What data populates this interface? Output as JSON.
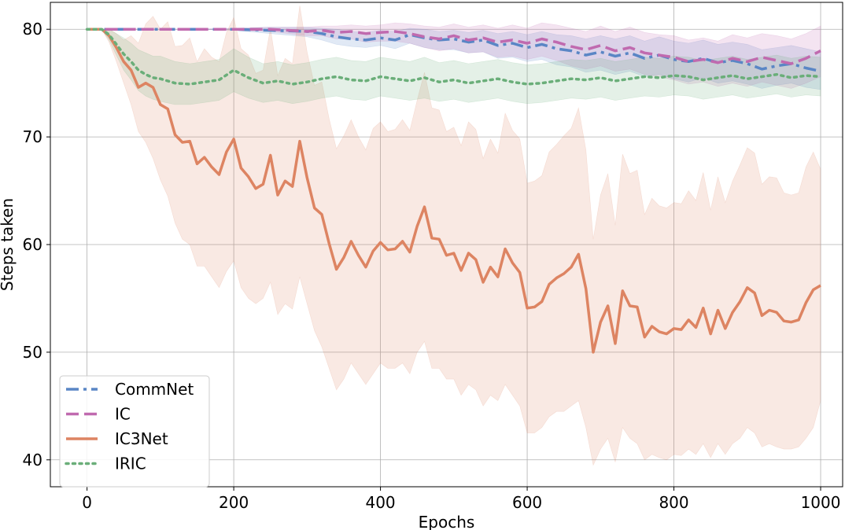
{
  "chart_data": {
    "type": "line",
    "title": "",
    "xlabel": "Epochs",
    "ylabel": "Steps taken",
    "xlim": [
      -50,
      1030
    ],
    "ylim": [
      37.5,
      82.5
    ],
    "xticks": [
      0,
      200,
      400,
      600,
      800,
      1000
    ],
    "yticks": [
      40,
      50,
      60,
      70,
      80
    ],
    "grid": true,
    "legend_position": "bottom-left",
    "series": [
      {
        "name": "CommNet",
        "color": "#5a86c5",
        "style": "dashdot",
        "x": [
          0,
          20,
          40,
          60,
          80,
          100,
          150,
          200,
          250,
          300,
          320,
          340,
          360,
          380,
          400,
          420,
          440,
          460,
          480,
          500,
          520,
          540,
          560,
          580,
          600,
          620,
          640,
          660,
          680,
          700,
          720,
          740,
          760,
          780,
          800,
          820,
          840,
          860,
          880,
          900,
          920,
          940,
          960,
          980,
          1000
        ],
        "y": [
          80,
          80,
          80,
          80,
          80,
          80,
          80,
          80,
          79.9,
          79.8,
          79.6,
          79.3,
          79.1,
          79.0,
          79.2,
          79.0,
          79.5,
          79.2,
          79.0,
          79.1,
          78.8,
          79.0,
          78.5,
          78.7,
          78.3,
          78.6,
          78.2,
          78.0,
          77.6,
          77.9,
          77.5,
          77.8,
          77.3,
          77.6,
          77.2,
          77.0,
          77.3,
          76.9,
          77.1,
          76.8,
          76.3,
          76.6,
          76.8,
          76.4,
          76.1
        ],
        "lower": [
          80,
          80,
          80,
          80,
          80,
          80,
          80,
          79.9,
          79.6,
          79.3,
          79.0,
          78.6,
          78.4,
          78.3,
          78.5,
          78.2,
          78.7,
          78.3,
          78.1,
          78.1,
          77.8,
          77.9,
          77.3,
          77.4,
          77.0,
          77.2,
          76.7,
          76.5,
          76.0,
          76.2,
          75.8,
          76.1,
          75.6,
          75.8,
          75.4,
          75.1,
          75.5,
          75.0,
          75.2,
          74.9,
          74.5,
          74.8,
          75.0,
          74.6,
          74.4
        ],
        "upper": [
          80,
          80,
          80,
          80,
          80,
          80,
          80,
          80.1,
          80.2,
          80.2,
          80.1,
          80.0,
          79.8,
          79.7,
          79.9,
          79.8,
          80.1,
          80.0,
          79.8,
          79.9,
          79.7,
          79.9,
          79.6,
          79.8,
          79.5,
          79.8,
          79.5,
          79.4,
          79.1,
          79.4,
          79.1,
          79.4,
          78.9,
          79.3,
          78.9,
          78.7,
          79.0,
          78.6,
          78.8,
          78.6,
          78.1,
          78.3,
          78.5,
          78.2,
          77.9
        ]
      },
      {
        "name": "IC",
        "color": "#c06aaf",
        "style": "dashed",
        "x": [
          0,
          20,
          40,
          60,
          80,
          100,
          150,
          200,
          250,
          300,
          320,
          340,
          360,
          380,
          400,
          420,
          440,
          460,
          480,
          500,
          520,
          540,
          560,
          580,
          600,
          620,
          640,
          660,
          680,
          700,
          720,
          740,
          760,
          780,
          800,
          820,
          840,
          860,
          880,
          900,
          920,
          940,
          960,
          980,
          1000
        ],
        "y": [
          80,
          80,
          80,
          80,
          80,
          80,
          80,
          80,
          80,
          79.8,
          79.9,
          79.7,
          79.8,
          79.6,
          79.7,
          79.8,
          79.6,
          79.3,
          79.1,
          79.4,
          79.0,
          79.2,
          78.8,
          79.0,
          78.7,
          79.1,
          78.8,
          78.4,
          78.1,
          78.5,
          78.0,
          78.3,
          77.8,
          77.6,
          77.4,
          77.0,
          77.2,
          76.9,
          77.3,
          77.0,
          77.4,
          77.1,
          76.8,
          77.3,
          78.0
        ],
        "lower": [
          80,
          80,
          80,
          80,
          80,
          80,
          80,
          79.9,
          79.8,
          79.4,
          79.4,
          79.1,
          79.1,
          78.8,
          78.9,
          78.9,
          78.7,
          78.3,
          78.0,
          78.2,
          77.8,
          77.9,
          77.4,
          77.5,
          77.2,
          77.5,
          77.1,
          76.6,
          76.3,
          76.6,
          76.1,
          76.3,
          75.8,
          75.6,
          75.3,
          74.9,
          75.1,
          74.7,
          75.0,
          74.7,
          75.1,
          74.8,
          74.5,
          75.0,
          75.6
        ],
        "upper": [
          80,
          80,
          80,
          80,
          80,
          80,
          80,
          80.1,
          80.2,
          80.2,
          80.3,
          80.3,
          80.4,
          80.3,
          80.4,
          80.6,
          80.5,
          80.3,
          80.2,
          80.5,
          80.2,
          80.4,
          80.1,
          80.4,
          80.1,
          80.6,
          80.4,
          80.1,
          79.8,
          80.3,
          79.8,
          80.2,
          79.7,
          79.5,
          79.4,
          79.0,
          79.2,
          78.9,
          79.5,
          79.2,
          79.6,
          79.4,
          79.1,
          79.6,
          80.3
        ]
      },
      {
        "name": "IC3Net",
        "color": "#dd8462",
        "style": "solid",
        "x": [
          0,
          10,
          20,
          30,
          40,
          50,
          60,
          70,
          80,
          90,
          100,
          110,
          120,
          130,
          140,
          150,
          160,
          170,
          180,
          190,
          200,
          210,
          220,
          230,
          240,
          250,
          260,
          270,
          280,
          290,
          300,
          310,
          320,
          330,
          340,
          350,
          360,
          370,
          380,
          390,
          400,
          410,
          420,
          430,
          440,
          450,
          460,
          470,
          480,
          490,
          500,
          510,
          520,
          530,
          540,
          550,
          560,
          570,
          580,
          590,
          600,
          610,
          620,
          630,
          640,
          650,
          660,
          670,
          680,
          690,
          700,
          710,
          720,
          730,
          740,
          750,
          760,
          770,
          780,
          790,
          800,
          810,
          820,
          830,
          840,
          850,
          860,
          870,
          880,
          890,
          900,
          910,
          920,
          930,
          940,
          950,
          960,
          970,
          980,
          990,
          1000
        ],
        "y": [
          80,
          80,
          80,
          79.4,
          78.3,
          77.0,
          76.2,
          74.6,
          75.0,
          74.6,
          73.0,
          72.6,
          70.2,
          69.5,
          69.6,
          67.5,
          68.1,
          67.2,
          66.5,
          68.6,
          69.8,
          67.1,
          66.3,
          65.2,
          65.6,
          68.3,
          64.6,
          65.9,
          65.4,
          69.6,
          66.2,
          63.4,
          62.8,
          60.1,
          57.7,
          58.8,
          60.3,
          59.0,
          57.9,
          59.4,
          60.2,
          59.5,
          59.6,
          60.3,
          59.3,
          61.7,
          63.5,
          60.6,
          60.5,
          59.0,
          59.2,
          57.6,
          59.2,
          58.6,
          56.5,
          57.9,
          57.0,
          59.6,
          58.3,
          57.4,
          54.1,
          54.2,
          54.7,
          56.3,
          56.9,
          57.3,
          57.9,
          59.1,
          55.9,
          50.0,
          52.8,
          54.3,
          50.8,
          55.7,
          54.3,
          54.2,
          51.4,
          52.4,
          51.9,
          51.7,
          52.2,
          52.1,
          53.0,
          52.3,
          54.1,
          51.7,
          53.9,
          52.2,
          53.7,
          54.7,
          56.0,
          55.5,
          53.4,
          53.9,
          53.7,
          52.9,
          52.8,
          53.0,
          54.6,
          55.8,
          56.2
        ],
        "lower": [
          80,
          80,
          80,
          78.8,
          77.0,
          75.0,
          73.0,
          70.5,
          69.5,
          68.0,
          66.0,
          64.5,
          62.0,
          60.5,
          60.0,
          58.0,
          58.0,
          57.0,
          56.0,
          57.5,
          58.5,
          56.0,
          55.0,
          54.5,
          55.0,
          56.5,
          53.5,
          54.5,
          54.0,
          57.0,
          54.5,
          52.0,
          50.5,
          48.5,
          46.5,
          47.5,
          49.0,
          48.0,
          47.0,
          48.0,
          49.0,
          48.5,
          48.5,
          49.0,
          48.0,
          50.0,
          51.0,
          48.5,
          48.5,
          47.5,
          47.5,
          46.0,
          47.0,
          46.5,
          45.0,
          46.0,
          45.5,
          47.0,
          46.0,
          45.0,
          42.5,
          42.5,
          43.0,
          44.0,
          44.5,
          44.5,
          45.0,
          45.5,
          43.0,
          39.5,
          41.0,
          42.0,
          39.8,
          43.0,
          42.0,
          41.5,
          40.0,
          40.5,
          40.2,
          40.0,
          40.5,
          40.4,
          41.0,
          40.5,
          41.5,
          40.2,
          41.5,
          40.5,
          41.5,
          42.0,
          43.0,
          42.5,
          41.2,
          41.5,
          41.2,
          41.0,
          41.0,
          41.2,
          42.0,
          43.0,
          45.5
        ],
        "upper": [
          80,
          80,
          80,
          80.0,
          79.6,
          79.0,
          79.4,
          78.7,
          80.5,
          81.2,
          80.0,
          80.7,
          78.4,
          78.5,
          79.2,
          77.0,
          78.2,
          77.4,
          77.0,
          79.7,
          81.1,
          78.2,
          77.6,
          75.9,
          76.2,
          80.1,
          75.7,
          77.3,
          76.8,
          82.2,
          77.9,
          74.8,
          75.1,
          71.7,
          68.9,
          70.1,
          71.6,
          70.0,
          68.8,
          70.8,
          71.4,
          70.5,
          70.7,
          71.6,
          70.6,
          73.4,
          76.0,
          72.7,
          72.5,
          70.5,
          70.9,
          69.2,
          71.4,
          70.7,
          68.0,
          69.8,
          68.5,
          72.2,
          70.6,
          69.8,
          65.7,
          65.9,
          66.4,
          68.6,
          69.3,
          70.1,
          70.8,
          72.7,
          68.8,
          60.5,
          64.6,
          66.6,
          61.8,
          68.4,
          66.6,
          66.9,
          62.8,
          64.3,
          63.6,
          63.4,
          63.9,
          63.8,
          65.0,
          64.1,
          66.7,
          63.2,
          66.3,
          63.9,
          65.9,
          67.4,
          69.0,
          68.5,
          65.6,
          66.3,
          66.2,
          64.8,
          64.6,
          64.8,
          67.2,
          68.6,
          67.0
        ]
      },
      {
        "name": "IRIC",
        "color": "#6aae79",
        "style": "dotted",
        "x": [
          0,
          10,
          20,
          30,
          40,
          50,
          60,
          70,
          80,
          90,
          100,
          120,
          140,
          160,
          180,
          200,
          220,
          240,
          260,
          280,
          300,
          320,
          340,
          360,
          380,
          400,
          420,
          440,
          460,
          480,
          500,
          520,
          540,
          560,
          580,
          600,
          620,
          640,
          660,
          680,
          700,
          720,
          740,
          760,
          780,
          800,
          820,
          840,
          860,
          880,
          900,
          920,
          940,
          960,
          980,
          1000
        ],
        "y": [
          80,
          80,
          80,
          79.5,
          78.6,
          77.7,
          77.0,
          76.2,
          75.8,
          75.5,
          75.4,
          75.0,
          74.9,
          75.1,
          75.3,
          76.2,
          75.5,
          75.0,
          75.2,
          74.9,
          75.1,
          75.4,
          75.6,
          75.3,
          75.2,
          75.6,
          75.4,
          75.2,
          75.5,
          75.1,
          75.3,
          75.0,
          75.2,
          75.4,
          75.1,
          74.9,
          75.0,
          75.2,
          75.4,
          75.3,
          75.5,
          75.2,
          75.4,
          75.6,
          75.5,
          75.7,
          75.6,
          75.3,
          75.5,
          75.7,
          75.4,
          75.6,
          75.8,
          75.5,
          75.7,
          75.6
        ],
        "lower": [
          80,
          80,
          80,
          79.0,
          77.6,
          76.2,
          75.3,
          74.3,
          73.8,
          73.5,
          73.3,
          73.0,
          73.0,
          73.2,
          73.4,
          74.2,
          73.6,
          73.2,
          73.4,
          73.1,
          73.3,
          73.6,
          73.8,
          73.5,
          73.4,
          73.8,
          73.6,
          73.4,
          73.6,
          73.3,
          73.5,
          73.2,
          73.4,
          73.6,
          73.3,
          73.1,
          73.2,
          73.4,
          73.6,
          73.5,
          73.7,
          73.4,
          73.6,
          73.8,
          73.7,
          73.9,
          73.8,
          73.5,
          73.7,
          73.9,
          73.6,
          73.8,
          74.0,
          73.7,
          73.9,
          73.8
        ],
        "upper": [
          80,
          80,
          80,
          80.0,
          79.6,
          79.2,
          78.7,
          78.1,
          77.8,
          77.5,
          77.5,
          77.0,
          76.8,
          77.0,
          77.2,
          78.2,
          77.4,
          76.8,
          77.0,
          76.7,
          76.9,
          77.2,
          77.4,
          77.1,
          77.0,
          77.4,
          77.2,
          77.0,
          77.4,
          76.9,
          77.1,
          76.8,
          77.0,
          77.2,
          76.9,
          76.7,
          76.8,
          77.0,
          77.2,
          77.1,
          77.3,
          77.0,
          77.2,
          77.4,
          77.3,
          77.5,
          77.4,
          77.1,
          77.3,
          77.5,
          77.2,
          77.4,
          77.6,
          77.3,
          77.5,
          77.4
        ]
      }
    ]
  }
}
